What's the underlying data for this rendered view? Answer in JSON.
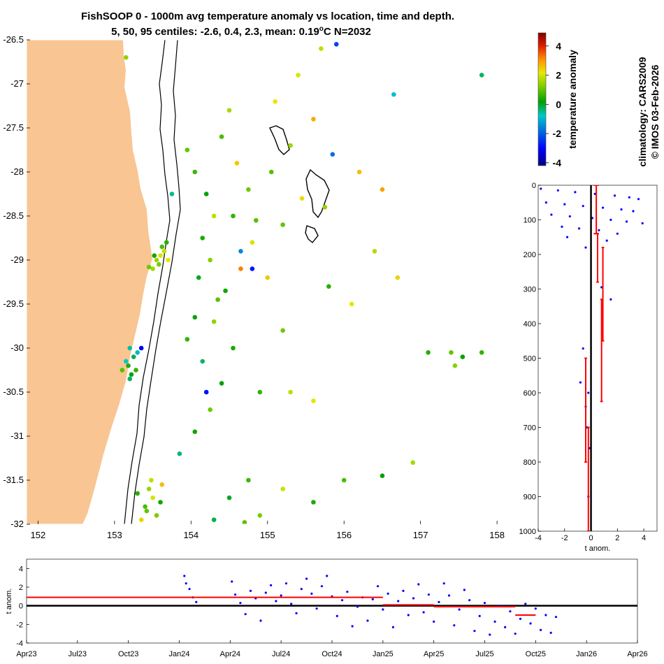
{
  "title": {
    "line1": "FishSOOP 0 - 1000m avg temperature anomaly vs location, time and depth.",
    "line2_prefix": "5, 50, 95 centiles: -2.6, 0.4, 2.3, mean: 0.19",
    "line2_sup": "o",
    "line2_suffix": "C N=2032"
  },
  "side_text": {
    "climatology": "climatology: CARS2009",
    "copyright": "© IMOS 03-Feb-2026"
  },
  "colors": {
    "land": "#F9C593",
    "depth_points": "#0000FF",
    "stats": "#FF0000",
    "zero_line": "#000000"
  },
  "chart_data": [
    {
      "type": "scatter",
      "name": "map",
      "xlim": [
        151.85,
        158.2
      ],
      "ylim": [
        -32,
        -26.5
      ],
      "x_ticks": [
        "152",
        "153",
        "154",
        "155",
        "156",
        "157",
        "158"
      ],
      "y_ticks": [
        "-26.5",
        "-27",
        "-27.5",
        "-28",
        "-28.5",
        "-29",
        "-29.5",
        "-30",
        "-30.5",
        "-31",
        "-31.5",
        "-32"
      ],
      "colorbar": {
        "label": "temperature anomaly",
        "range": [
          -4.2,
          4.9
        ],
        "ticks": [
          "-4",
          "-2",
          "0",
          "2",
          "4"
        ]
      },
      "points": [
        [
          153.65,
          -28.9,
          1.8
        ],
        [
          153.6,
          -28.95,
          2.0
        ],
        [
          153.55,
          -29.0,
          1.5
        ],
        [
          153.62,
          -28.85,
          0.8
        ],
        [
          153.58,
          -29.05,
          1.2
        ],
        [
          153.5,
          -29.1,
          1.6
        ],
        [
          153.68,
          -28.8,
          0.5
        ],
        [
          153.45,
          -29.08,
          1.1
        ],
        [
          153.7,
          -29.0,
          2.2
        ],
        [
          153.52,
          -28.95,
          0.3
        ],
        [
          153.2,
          -30.0,
          -0.6
        ],
        [
          153.25,
          -30.1,
          -0.2
        ],
        [
          153.18,
          -30.2,
          0.4
        ],
        [
          153.3,
          -30.05,
          -1.0
        ],
        [
          153.22,
          -30.3,
          0.1
        ],
        [
          153.15,
          -30.15,
          -0.8
        ],
        [
          153.28,
          -30.25,
          0.6
        ],
        [
          153.2,
          -30.35,
          -0.3
        ],
        [
          153.35,
          -30.0,
          -3.2
        ],
        [
          153.1,
          -30.25,
          0.9
        ],
        [
          153.45,
          -31.6,
          1.5
        ],
        [
          153.5,
          -31.7,
          2.0
        ],
        [
          153.4,
          -31.8,
          0.8
        ],
        [
          153.55,
          -31.9,
          1.2
        ],
        [
          153.35,
          -31.95,
          2.4
        ],
        [
          153.6,
          -31.75,
          0.3
        ],
        [
          153.48,
          -31.5,
          1.8
        ],
        [
          153.3,
          -31.65,
          0.5
        ],
        [
          153.62,
          -31.55,
          2.6
        ],
        [
          153.42,
          -31.85,
          1.0
        ],
        [
          153.95,
          -27.75,
          1.0
        ],
        [
          154.05,
          -28.0,
          0.7
        ],
        [
          154.2,
          -28.25,
          0.2
        ],
        [
          154.3,
          -28.5,
          1.8
        ],
        [
          154.15,
          -28.75,
          0.4
        ],
        [
          154.25,
          -29.0,
          1.3
        ],
        [
          154.1,
          -29.2,
          0.0
        ],
        [
          154.35,
          -29.45,
          0.9
        ],
        [
          154.05,
          -29.65,
          0.1
        ],
        [
          153.95,
          -29.9,
          0.6
        ],
        [
          154.15,
          -30.15,
          -0.3
        ],
        [
          154.4,
          -30.4,
          0.2
        ],
        [
          154.25,
          -30.7,
          1.1
        ],
        [
          154.05,
          -30.95,
          0.3
        ],
        [
          153.85,
          -31.2,
          -0.4
        ],
        [
          154.5,
          -27.3,
          1.6
        ],
        [
          154.4,
          -27.6,
          0.8
        ],
        [
          154.6,
          -27.9,
          2.5
        ],
        [
          154.75,
          -28.2,
          1.1
        ],
        [
          154.55,
          -28.5,
          0.6
        ],
        [
          154.8,
          -28.8,
          2.0
        ],
        [
          154.65,
          -29.1,
          3.2
        ],
        [
          154.45,
          -29.35,
          0.3
        ],
        [
          154.3,
          -29.7,
          1.4
        ],
        [
          154.55,
          -30.0,
          0.4
        ],
        [
          155.1,
          -27.2,
          2.2
        ],
        [
          155.3,
          -27.7,
          1.5
        ],
        [
          155.05,
          -28.0,
          0.9
        ],
        [
          155.45,
          -28.3,
          2.3
        ],
        [
          155.2,
          -28.6,
          1.0
        ],
        [
          155.6,
          -27.4,
          2.8
        ],
        [
          155.85,
          -27.8,
          -1.8
        ],
        [
          155.75,
          -28.4,
          1.4
        ],
        [
          156.2,
          -28.0,
          2.6
        ],
        [
          156.5,
          -28.2,
          2.9
        ],
        [
          156.4,
          -28.9,
          1.7
        ],
        [
          156.7,
          -29.2,
          2.4
        ],
        [
          156.1,
          -29.5,
          2.2
        ],
        [
          155.8,
          -29.3,
          0.5
        ],
        [
          155.2,
          -29.8,
          1.1
        ],
        [
          155.7,
          -26.6,
          1.8
        ],
        [
          155.9,
          -26.55,
          -2.3
        ],
        [
          156.65,
          -27.12,
          -0.9
        ],
        [
          157.8,
          -26.9,
          -0.3
        ],
        [
          155.4,
          -26.9,
          2.0
        ],
        [
          157.1,
          -30.05,
          0.5
        ],
        [
          157.4,
          -30.05,
          1.0
        ],
        [
          157.55,
          -30.1,
          0.2
        ],
        [
          157.8,
          -30.05,
          0.6
        ],
        [
          157.45,
          -30.2,
          1.3
        ],
        [
          154.75,
          -31.5,
          0.7
        ],
        [
          155.2,
          -31.6,
          1.9
        ],
        [
          155.6,
          -31.75,
          0.4
        ],
        [
          156.0,
          -31.5,
          0.8
        ],
        [
          156.5,
          -31.45,
          0.2
        ],
        [
          156.9,
          -31.3,
          1.6
        ],
        [
          154.9,
          -31.9,
          1.2
        ],
        [
          154.3,
          -31.95,
          -0.2
        ],
        [
          154.7,
          -31.98,
          0.9
        ],
        [
          154.5,
          -31.7,
          0.0
        ],
        [
          153.15,
          -26.7,
          1.4
        ],
        [
          153.75,
          -28.25,
          -0.5
        ],
        [
          154.65,
          -28.9,
          -1.5
        ],
        [
          154.8,
          -29.1,
          -2.8
        ],
        [
          154.85,
          -28.55,
          0.9
        ],
        [
          155.0,
          -29.2,
          2.5
        ],
        [
          154.9,
          -30.5,
          0.6
        ],
        [
          155.3,
          -30.5,
          1.8
        ],
        [
          155.6,
          -30.6,
          2.1
        ],
        [
          154.2,
          -30.5,
          -2.9
        ]
      ]
    },
    {
      "type": "scatter",
      "name": "depth_profile",
      "xlabel": "t anom.",
      "xlim": [
        -4,
        5
      ],
      "ylim": [
        0,
        1000
      ],
      "x_ticks": [
        "-4",
        "-2",
        "0",
        "2",
        "4"
      ],
      "y_ticks": [
        "0",
        "100",
        "200",
        "300",
        "400",
        "500",
        "600",
        "700",
        "800",
        "900",
        "1000"
      ],
      "points": [
        [
          -3.8,
          10
        ],
        [
          -2.5,
          15
        ],
        [
          -1.2,
          20
        ],
        [
          0.3,
          25
        ],
        [
          1.8,
          30
        ],
        [
          2.9,
          35
        ],
        [
          3.6,
          40
        ],
        [
          -3.4,
          50
        ],
        [
          -2.0,
          55
        ],
        [
          -0.6,
          60
        ],
        [
          0.9,
          65
        ],
        [
          2.3,
          70
        ],
        [
          3.2,
          75
        ],
        [
          -3.0,
          85
        ],
        [
          -1.6,
          90
        ],
        [
          0.1,
          95
        ],
        [
          1.5,
          100
        ],
        [
          2.7,
          105
        ],
        [
          3.9,
          110
        ],
        [
          -2.2,
          120
        ],
        [
          -0.9,
          125
        ],
        [
          0.6,
          130
        ],
        [
          2.0,
          140
        ],
        [
          -1.8,
          150
        ],
        [
          1.2,
          160
        ],
        [
          -0.4,
          180
        ],
        [
          0.8,
          295
        ],
        [
          1.5,
          330
        ],
        [
          -0.6,
          472
        ],
        [
          -0.8,
          570
        ],
        [
          -0.2,
          600
        ],
        [
          -0.4,
          640
        ],
        [
          -0.3,
          700
        ],
        [
          -0.1,
          760
        ],
        [
          -0.2,
          900
        ]
      ],
      "bins": [
        {
          "depth_from": 0,
          "depth_to": 140,
          "mean": 0.4,
          "low": 0.2,
          "high": 0.6
        },
        {
          "depth_from": 140,
          "depth_to": 280,
          "mean": 0.5,
          "low": 0.4,
          "high": 0.6
        },
        {
          "depth_from": 180,
          "depth_to": 450,
          "mean": 0.9,
          "low": 0.8,
          "high": 1.0
        },
        {
          "depth_from": 330,
          "depth_to": 625,
          "mean": 0.8,
          "low": 0.7,
          "high": 0.9
        },
        {
          "depth_from": 500,
          "depth_to": 800,
          "mean": -0.4,
          "low": -0.5,
          "high": -0.3
        },
        {
          "depth_from": 700,
          "depth_to": 1000,
          "mean": -0.2,
          "low": -0.3,
          "high": -0.1
        }
      ]
    },
    {
      "type": "scatter",
      "name": "timeseries",
      "ylabel": "t anom.",
      "ylim": [
        -4,
        5
      ],
      "y_ticks": [
        "-4",
        "-2",
        "0",
        "2",
        "4"
      ],
      "x_ticks": [
        "Apr23",
        "Jul23",
        "Oct23",
        "Jan24",
        "Apr24",
        "Jul24",
        "Oct24",
        "Jan25",
        "Apr25",
        "Jul25",
        "Oct25",
        "Jan26",
        "Apr26"
      ],
      "points": [
        [
          9.3,
          3.2
        ],
        [
          9.4,
          2.4
        ],
        [
          9.6,
          1.8
        ],
        [
          9.8,
          0.9
        ],
        [
          10.0,
          0.4
        ],
        [
          12.1,
          2.6
        ],
        [
          12.3,
          1.2
        ],
        [
          12.6,
          0.3
        ],
        [
          12.9,
          -0.9
        ],
        [
          13.2,
          1.6
        ],
        [
          13.5,
          0.8
        ],
        [
          13.8,
          -1.6
        ],
        [
          14.1,
          1.4
        ],
        [
          14.4,
          2.2
        ],
        [
          14.7,
          0.5
        ],
        [
          15.0,
          1.1
        ],
        [
          15.3,
          2.4
        ],
        [
          15.6,
          0.2
        ],
        [
          15.9,
          -0.8
        ],
        [
          16.2,
          1.8
        ],
        [
          16.5,
          2.9
        ],
        [
          16.8,
          1.3
        ],
        [
          17.1,
          -0.3
        ],
        [
          17.4,
          2.1
        ],
        [
          17.7,
          3.2
        ],
        [
          18.0,
          1.0
        ],
        [
          18.3,
          -1.1
        ],
        [
          18.6,
          0.6
        ],
        [
          18.9,
          1.5
        ],
        [
          19.2,
          -2.2
        ],
        [
          19.5,
          -0.1
        ],
        [
          19.8,
          0.9
        ],
        [
          20.1,
          -1.6
        ],
        [
          20.4,
          0.7
        ],
        [
          20.7,
          2.1
        ],
        [
          21.0,
          -0.4
        ],
        [
          21.3,
          1.3
        ],
        [
          21.6,
          -2.3
        ],
        [
          21.9,
          0.5
        ],
        [
          22.2,
          1.6
        ],
        [
          22.5,
          -1.0
        ],
        [
          22.8,
          0.8
        ],
        [
          23.1,
          2.3
        ],
        [
          23.4,
          -0.7
        ],
        [
          23.7,
          1.2
        ],
        [
          24.0,
          -1.7
        ],
        [
          24.3,
          0.4
        ],
        [
          24.6,
          2.4
        ],
        [
          24.9,
          1.1
        ],
        [
          25.2,
          -2.1
        ],
        [
          25.5,
          -0.4
        ],
        [
          25.8,
          1.7
        ],
        [
          26.1,
          0.6
        ],
        [
          26.4,
          -2.7
        ],
        [
          26.7,
          -1.1
        ],
        [
          27.0,
          0.3
        ],
        [
          27.3,
          -3.1
        ],
        [
          27.6,
          -1.7
        ],
        [
          27.9,
          0.0
        ],
        [
          28.2,
          -2.3
        ],
        [
          28.5,
          -0.6
        ],
        [
          28.8,
          -3.0
        ],
        [
          29.1,
          -1.4
        ],
        [
          29.4,
          0.2
        ],
        [
          29.7,
          -1.9
        ],
        [
          30.0,
          -0.3
        ],
        [
          30.3,
          -2.6
        ],
        [
          30.6,
          -1.0
        ],
        [
          30.9,
          -2.9
        ],
        [
          31.2,
          -1.2
        ]
      ],
      "segments": [
        {
          "from": 0.0,
          "to": 10.0,
          "mean": 0.9
        },
        {
          "from": 10.0,
          "to": 21.0,
          "mean": 0.9
        },
        {
          "from": 21.0,
          "to": 24.0,
          "mean": 0.1
        },
        {
          "from": 24.0,
          "to": 28.8,
          "mean": -0.1
        },
        {
          "from": 28.8,
          "to": 30.0,
          "mean": -1.0
        }
      ]
    }
  ]
}
